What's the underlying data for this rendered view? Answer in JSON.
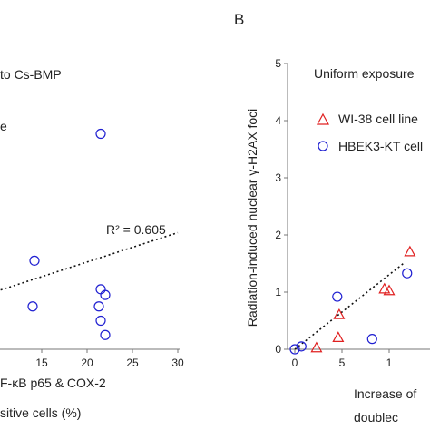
{
  "chart_data": [
    {
      "panel": "A",
      "type": "scatter",
      "xlim": [
        0,
        30
      ],
      "ylim": [
        0,
        5
      ],
      "x_ticks": [
        "15",
        "20",
        "25",
        "30"
      ],
      "xlabel_lines": [
        "F-κB p65 & COX-2",
        "sitive cells (%)"
      ],
      "legend_fragments": [
        "to Cs-BMP",
        "e"
      ],
      "trend_label": "R² = 0.605",
      "trendline": {
        "x0": 0,
        "y0": 0.5,
        "x1": 30,
        "y1": 2.04
      },
      "series": [
        {
          "marker": "circle",
          "color": "#1f1fd1",
          "points": [
            {
              "x": 21.5,
              "y": 3.77
            },
            {
              "x": 14.2,
              "y": 1.55
            },
            {
              "x": 14.0,
              "y": 0.75
            },
            {
              "x": 21.5,
              "y": 1.05
            },
            {
              "x": 22.0,
              "y": 0.95
            },
            {
              "x": 21.3,
              "y": 0.75
            },
            {
              "x": 21.5,
              "y": 0.5
            },
            {
              "x": 22.0,
              "y": 0.25
            }
          ]
        }
      ]
    },
    {
      "panel": "B",
      "panel_label": "B",
      "type": "scatter",
      "xlim": [
        0,
        13
      ],
      "ylim": [
        0,
        5
      ],
      "y_ticks": [
        "0",
        "1",
        "2",
        "3",
        "4",
        "5"
      ],
      "x_ticks": [
        "0",
        "5",
        "1"
      ],
      "ylabel": "Radiation-induced nuclear γ-H2AX foci",
      "xlabel_lines": [
        "Increase of",
        "doublec"
      ],
      "legend_title": "Uniform exposure",
      "trendline": {
        "x0": 0,
        "y0": 0.0,
        "x1": 11.5,
        "y1": 1.5
      },
      "series": [
        {
          "name": "WI-38 cell line",
          "marker": "triangle",
          "color": "#e02020",
          "points": [
            {
              "x": 2.3,
              "y": 0.02
            },
            {
              "x": 4.6,
              "y": 0.2
            },
            {
              "x": 4.7,
              "y": 0.6
            },
            {
              "x": 9.5,
              "y": 1.05
            },
            {
              "x": 10.0,
              "y": 1.02
            },
            {
              "x": 12.2,
              "y": 1.7
            }
          ]
        },
        {
          "name": "HBEK3-KT cell",
          "marker": "circle",
          "color": "#1f1fd1",
          "points": [
            {
              "x": 0.0,
              "y": 0.0
            },
            {
              "x": 0.7,
              "y": 0.05
            },
            {
              "x": 4.5,
              "y": 0.92
            },
            {
              "x": 8.2,
              "y": 0.18
            },
            {
              "x": 11.9,
              "y": 1.33
            }
          ]
        }
      ]
    }
  ]
}
